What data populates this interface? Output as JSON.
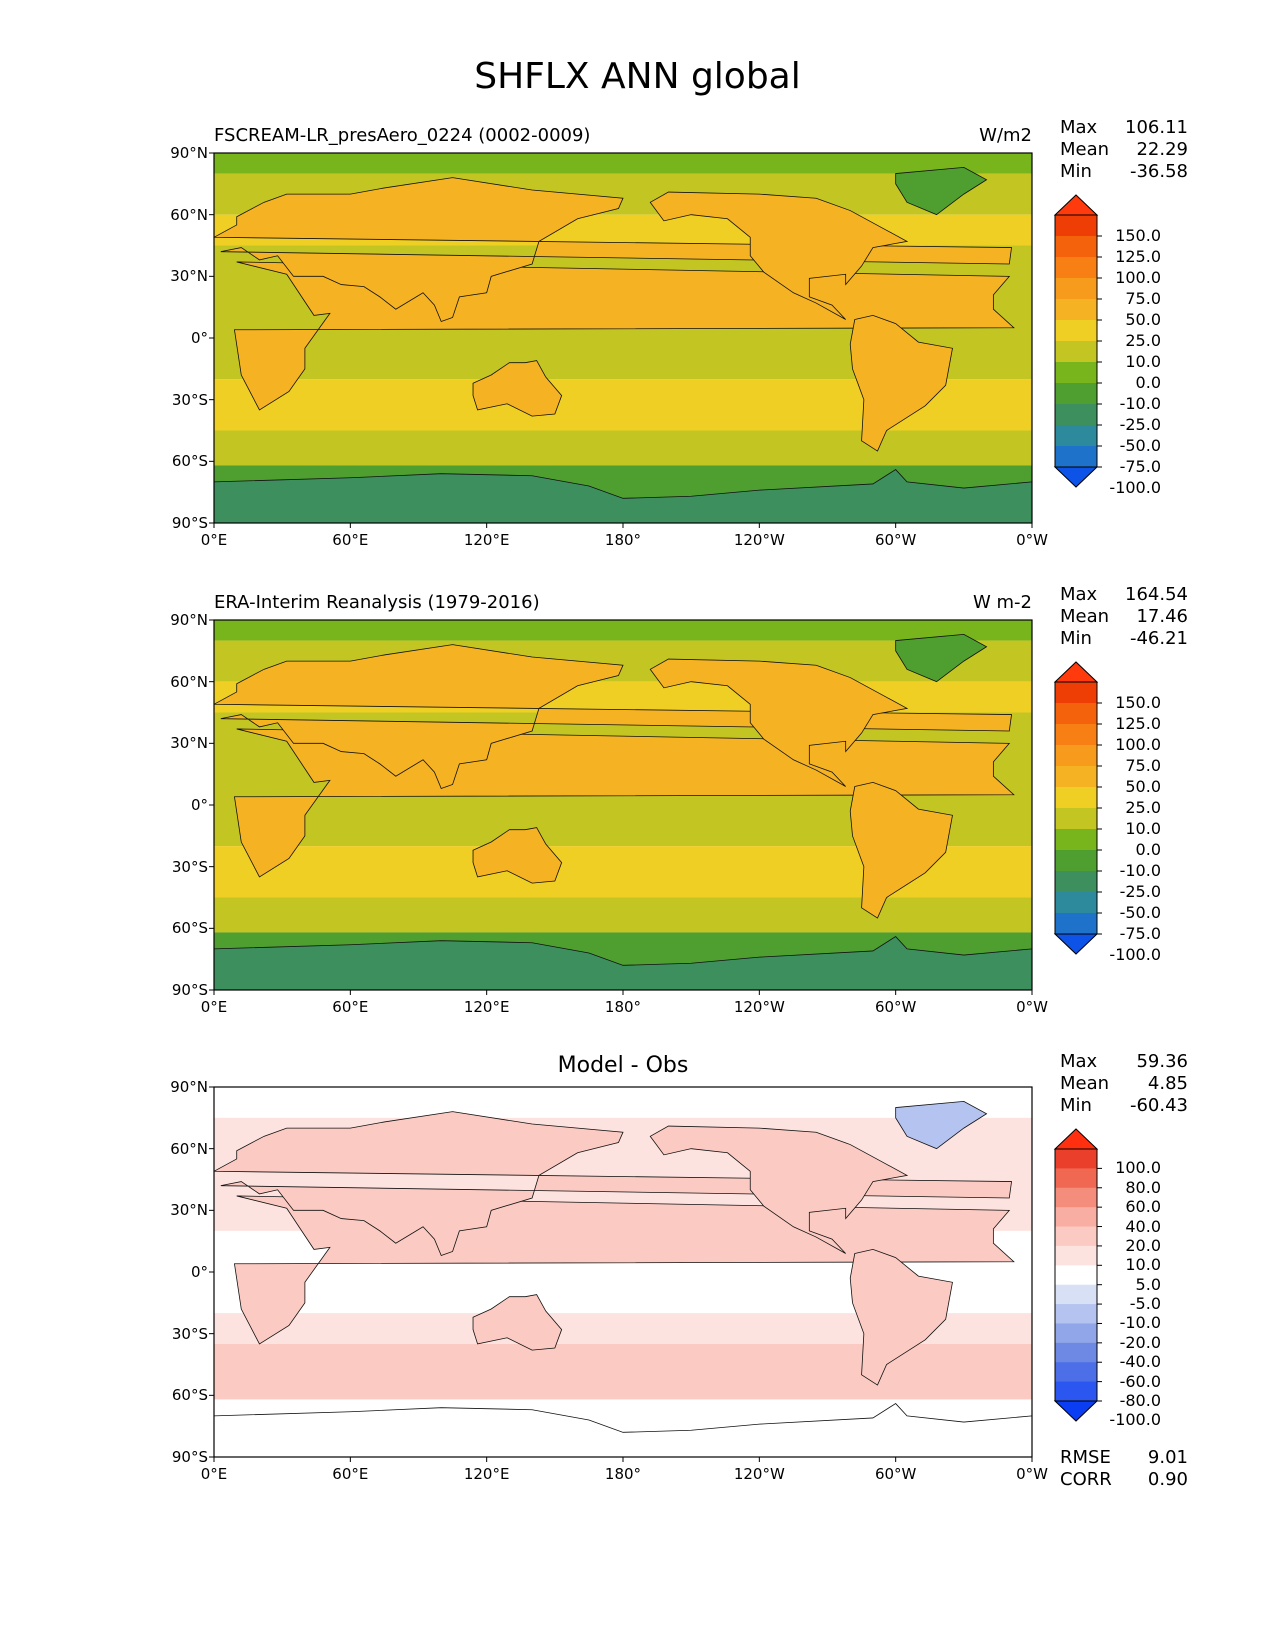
{
  "title": "SHFLX ANN global",
  "panels": [
    {
      "left_title": "FSCREAM-LR_presAero_0224 (0002-0009)",
      "center_title": "",
      "units": "W/m2",
      "stats": [
        {
          "label": "Max",
          "value": "106.11"
        },
        {
          "label": "Mean",
          "value": "22.29"
        },
        {
          "label": "Min",
          "value": "-36.58"
        }
      ],
      "colorbar_ticks": [
        "150.0",
        "125.0",
        "100.0",
        "75.0",
        "50.0",
        "25.0",
        "10.0",
        "0.0",
        "-10.0",
        "-25.0",
        "-50.0",
        "-75.0",
        "-100.0"
      ],
      "colorbar_colors": [
        "#0d53e8",
        "#1f72c9",
        "#2c8a9c",
        "#3d8f5e",
        "#4f9f30",
        "#78b41c",
        "#c3c523",
        "#f0cf25",
        "#f5b324",
        "#f79b1c",
        "#f77f13",
        "#f4620b",
        "#ee3e05",
        "#ff3a0d"
      ]
    },
    {
      "left_title": "ERA-Interim Reanalysis (1979-2016)",
      "center_title": "",
      "units": "W m-2",
      "stats": [
        {
          "label": "Max",
          "value": "164.54"
        },
        {
          "label": "Mean",
          "value": "17.46"
        },
        {
          "label": "Min",
          "value": "-46.21"
        }
      ],
      "colorbar_ticks": [
        "150.0",
        "125.0",
        "100.0",
        "75.0",
        "50.0",
        "25.0",
        "10.0",
        "0.0",
        "-10.0",
        "-25.0",
        "-50.0",
        "-75.0",
        "-100.0"
      ],
      "colorbar_colors": [
        "#0d53e8",
        "#1f72c9",
        "#2c8a9c",
        "#3d8f5e",
        "#4f9f30",
        "#78b41c",
        "#c3c523",
        "#f0cf25",
        "#f5b324",
        "#f79b1c",
        "#f77f13",
        "#f4620b",
        "#ee3e05",
        "#ff3a0d"
      ]
    },
    {
      "left_title": "",
      "center_title": "Model - Obs",
      "units": "",
      "stats": [
        {
          "label": "Max",
          "value": "59.36"
        },
        {
          "label": "Mean",
          "value": "4.85"
        },
        {
          "label": "Min",
          "value": "-60.43"
        }
      ],
      "colorbar_ticks": [
        "100.0",
        "80.0",
        "60.0",
        "40.0",
        "20.0",
        "10.0",
        "5.0",
        "-5.0",
        "-10.0",
        "-20.0",
        "-40.0",
        "-60.0",
        "-80.0",
        "-100.0"
      ],
      "colorbar_colors": [
        "#0b3df2",
        "#2b56f0",
        "#4c6fe8",
        "#6e89e3",
        "#90a6e8",
        "#b4c3ef",
        "#d8e0f6",
        "#ffffff",
        "#fde3df",
        "#fbcbc3",
        "#f8aea2",
        "#f48d7c",
        "#f06752",
        "#ea3f2a",
        "#ff2f10"
      ],
      "extra_stats": [
        {
          "label": "RMSE",
          "value": "9.01"
        },
        {
          "label": "CORR",
          "value": "0.90"
        }
      ]
    }
  ],
  "x_ticks": [
    "0°E",
    "60°E",
    "120°E",
    "180°",
    "120°W",
    "60°W",
    "0°W"
  ],
  "y_ticks": [
    "90°N",
    "60°N",
    "30°N",
    "0°",
    "30°S",
    "60°S",
    "90°S"
  ],
  "chart_data": [
    {
      "type": "heatmap",
      "title": "FSCREAM-LR_presAero_0224 (0002-0009)",
      "units": "W/m2",
      "x_range": [
        0,
        360
      ],
      "y_range": [
        -90,
        90
      ],
      "stats": {
        "max": 106.11,
        "mean": 22.29,
        "min": -36.58
      },
      "levels": [
        -100,
        -75,
        -50,
        -25,
        -10,
        0,
        10,
        25,
        50,
        75,
        100,
        125,
        150
      ]
    },
    {
      "type": "heatmap",
      "title": "ERA-Interim Reanalysis (1979-2016)",
      "units": "W m-2",
      "x_range": [
        0,
        360
      ],
      "y_range": [
        -90,
        90
      ],
      "stats": {
        "max": 164.54,
        "mean": 17.46,
        "min": -46.21
      },
      "levels": [
        -100,
        -75,
        -50,
        -25,
        -10,
        0,
        10,
        25,
        50,
        75,
        100,
        125,
        150
      ]
    },
    {
      "type": "heatmap",
      "title": "Model - Obs",
      "x_range": [
        0,
        360
      ],
      "y_range": [
        -90,
        90
      ],
      "stats": {
        "max": 59.36,
        "mean": 4.85,
        "min": -60.43,
        "rmse": 9.01,
        "corr": 0.9
      },
      "levels": [
        -100,
        -80,
        -60,
        -40,
        -20,
        -10,
        -5,
        5,
        10,
        20,
        40,
        60,
        80,
        100
      ]
    }
  ]
}
